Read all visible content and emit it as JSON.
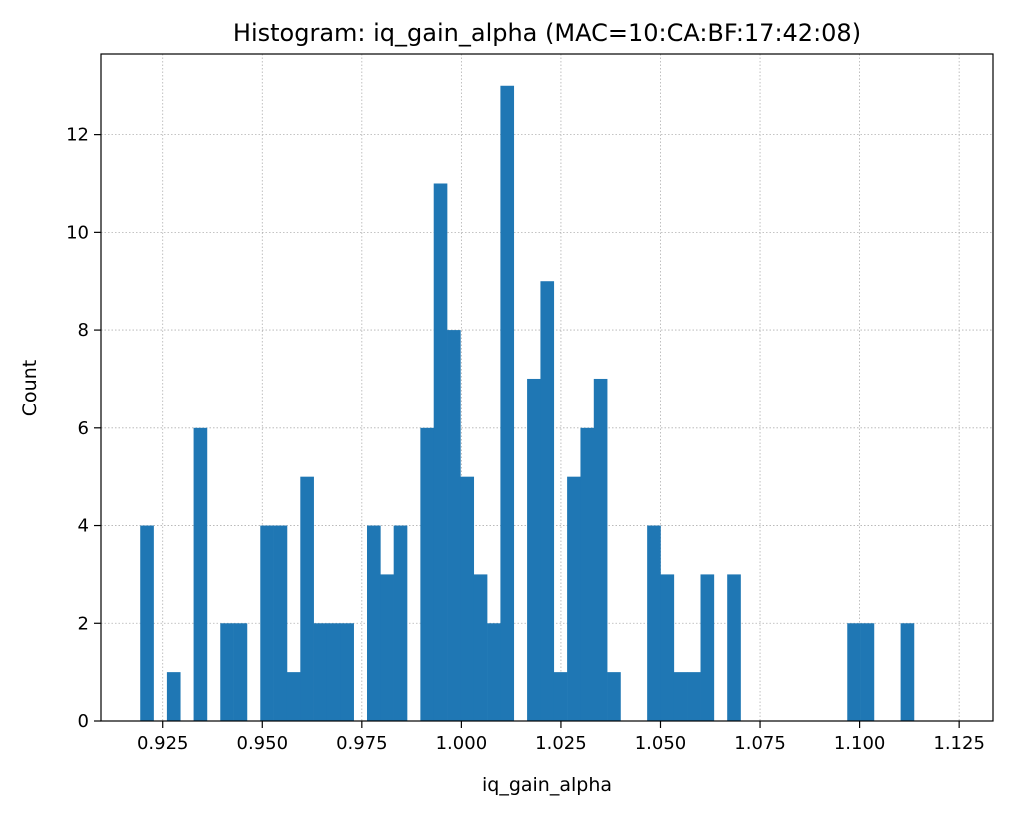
{
  "chart_data": {
    "type": "bar",
    "title": "Histogram: iq_gain_alpha (MAC=10:CA:BF:17:42:08)",
    "xlabel": "iq_gain_alpha",
    "ylabel": "Count",
    "xlim": [
      0.9095,
      1.1335
    ],
    "ylim": [
      0,
      13.65
    ],
    "xticks": [
      0.925,
      0.95,
      0.975,
      1.0,
      1.025,
      1.05,
      1.075,
      1.1,
      1.125
    ],
    "xtick_labels": [
      "0.925",
      "0.950",
      "0.975",
      "1.000",
      "1.025",
      "1.050",
      "1.075",
      "1.100",
      "1.125"
    ],
    "yticks": [
      0,
      2,
      4,
      6,
      8,
      10,
      12
    ],
    "ytick_labels": [
      "0",
      "2",
      "4",
      "6",
      "8",
      "10",
      "12"
    ],
    "grid": true,
    "bar_color": "#1f77b4",
    "bin_start": 0.91935,
    "bin_width": 0.00335,
    "values": [
      4,
      0,
      1,
      0,
      6,
      0,
      2,
      2,
      0,
      4,
      4,
      1,
      5,
      2,
      2,
      2,
      0,
      4,
      3,
      4,
      0,
      6,
      11,
      8,
      5,
      3,
      2,
      13,
      0,
      7,
      9,
      1,
      5,
      6,
      7,
      1,
      0,
      0,
      4,
      3,
      1,
      1,
      3,
      0,
      3,
      0,
      0,
      0,
      0,
      0,
      0,
      0,
      0,
      2,
      2,
      0,
      0,
      2
    ]
  }
}
